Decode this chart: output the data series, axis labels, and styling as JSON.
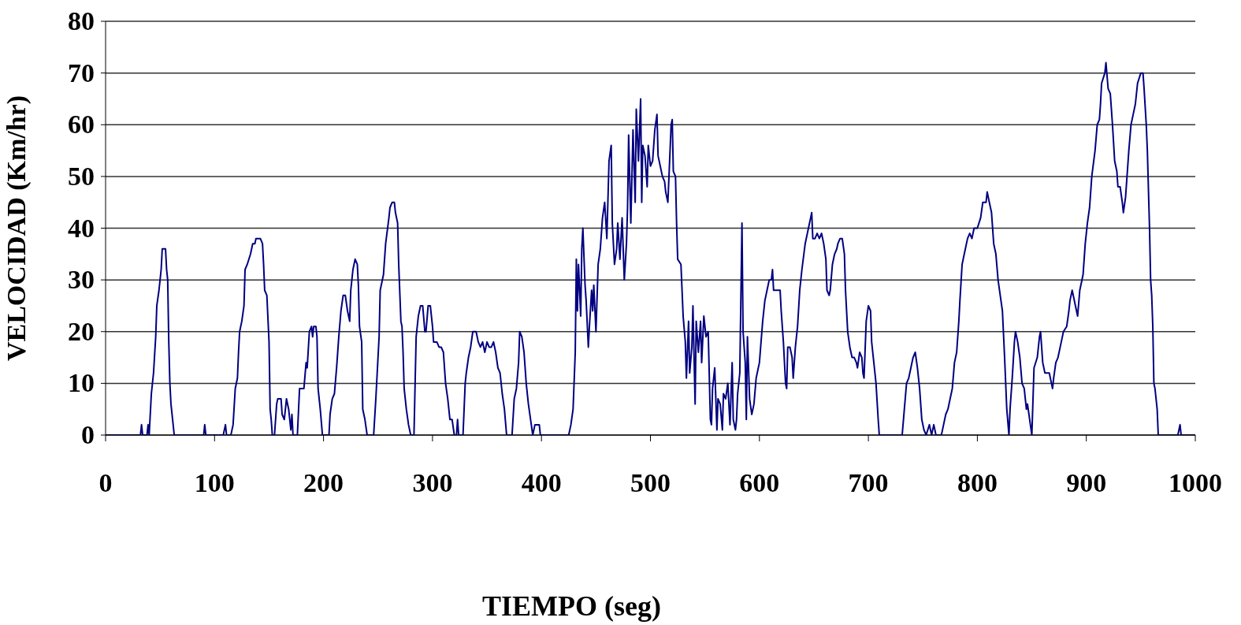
{
  "chart_data": {
    "type": "line",
    "xlabel": "TIEMPO (seg)",
    "ylabel": "VELOCIDAD (Km/hr)",
    "xlim": [
      0,
      1000
    ],
    "xticks": [
      0,
      100,
      200,
      300,
      400,
      500,
      600,
      700,
      800,
      900,
      1000
    ],
    "ylim": [
      0,
      80
    ],
    "yticks": [
      0,
      10,
      20,
      30,
      40,
      50,
      60,
      70,
      80
    ],
    "grid": "y",
    "series": [
      {
        "color": "#000080",
        "x": [
          0,
          32,
          33,
          34,
          38,
          39,
          40,
          42,
          44,
          46,
          47,
          49,
          51,
          52,
          55,
          56,
          57,
          58,
          59,
          60,
          62,
          63,
          65,
          90,
          91,
          92,
          108,
          110,
          111,
          115,
          117,
          119,
          121,
          122,
          123,
          125,
          127,
          128,
          130,
          133,
          135,
          137,
          138,
          142,
          144,
          145,
          146,
          148,
          150,
          151,
          152,
          153,
          155,
          157,
          158,
          161,
          162,
          164,
          166,
          168,
          170,
          171,
          172,
          176,
          178,
          182,
          184,
          185,
          187,
          189,
          190,
          191,
          193,
          194,
          195,
          197,
          199,
          205,
          206,
          208,
          210,
          212,
          214,
          216,
          218,
          220,
          222,
          224,
          225,
          227,
          229,
          231,
          232,
          233,
          235,
          236,
          238,
          240,
          246,
          248,
          249,
          251,
          252,
          255,
          257,
          260,
          261,
          263,
          265,
          266,
          268,
          269,
          271,
          272,
          273,
          274,
          276,
          278,
          280,
          283,
          285,
          287,
          289,
          291,
          293,
          294,
          296,
          298,
          300,
          301,
          304,
          306,
          308,
          310,
          312,
          314,
          316,
          318,
          320,
          322,
          323,
          324,
          328,
          330,
          331,
          333,
          335,
          337,
          340,
          342,
          344,
          346,
          348,
          350,
          352,
          354,
          356,
          358,
          360,
          362,
          364,
          366,
          368,
          373,
          375,
          377,
          379,
          380,
          382,
          384,
          386,
          388,
          390,
          392,
          394,
          398,
          399,
          425,
          427,
          429,
          431,
          432,
          433,
          434,
          436,
          437,
          438,
          440,
          441,
          443,
          444,
          446,
          447,
          448,
          450,
          452,
          454,
          456,
          458,
          460,
          462,
          464,
          465,
          467,
          469,
          470,
          472,
          474,
          476,
          478,
          479,
          480,
          482,
          484,
          486,
          487,
          489,
          491,
          492,
          493,
          495,
          497,
          498,
          500,
          502,
          504,
          506,
          507,
          509,
          511,
          513,
          514,
          516,
          517,
          519,
          520,
          521,
          523,
          524,
          525,
          528,
          530,
          532,
          533,
          535,
          536,
          538,
          539,
          541,
          542,
          544,
          546,
          547,
          549,
          551,
          553,
          555,
          556,
          557,
          559,
          561,
          562,
          564,
          566,
          567,
          569,
          571,
          573,
          575,
          576,
          578,
          579,
          580,
          582,
          584,
          585,
          587,
          588,
          589,
          591,
          593,
          595,
          597,
          600,
          603,
          605,
          607,
          609,
          611,
          612,
          613,
          616,
          619,
          620,
          622,
          624,
          625,
          626,
          628,
          630,
          631,
          633,
          635,
          637,
          639,
          642,
          645,
          647,
          648,
          649,
          651,
          653,
          655,
          657,
          659,
          661,
          662,
          664,
          665,
          667,
          669,
          671,
          672,
          674,
          676,
          678,
          679,
          681,
          683,
          685,
          687,
          689,
          690,
          692,
          694,
          695,
          696,
          698,
          700,
          702,
          703,
          705,
          707,
          709,
          710,
          731,
          733,
          735,
          737,
          739,
          741,
          743,
          745,
          747,
          749,
          751,
          753,
          756,
          758,
          760,
          762,
          767,
          769,
          771,
          773,
          775,
          777,
          779,
          781,
          783,
          784,
          786,
          788,
          791,
          793,
          795,
          797,
          800,
          803,
          805,
          808,
          809,
          811,
          813,
          815,
          817,
          819,
          821,
          823,
          825,
          827,
          829,
          830,
          832,
          834,
          835,
          837,
          839,
          841,
          843,
          844,
          845,
          846,
          848,
          850,
          852,
          855,
          857,
          858,
          860,
          862,
          866,
          868,
          869,
          870,
          872,
          874,
          877,
          879,
          882,
          884,
          885,
          887,
          888,
          890,
          892,
          894,
          897,
          899,
          901,
          903,
          905,
          908,
          910,
          912,
          913,
          914,
          917,
          918,
          920,
          922,
          924,
          926,
          928,
          929,
          931,
          933,
          934,
          936,
          938,
          939,
          941,
          943,
          945,
          947,
          950,
          952,
          953,
          955,
          956,
          958,
          959,
          960,
          961,
          962,
          963,
          965,
          966,
          984,
          985,
          986,
          987,
          1000
        ],
        "values": [
          0,
          0,
          2,
          0,
          0,
          2,
          0,
          8,
          12,
          19,
          25,
          28,
          32,
          36,
          36,
          32,
          30,
          18,
          10,
          6,
          2,
          0,
          0,
          0,
          2,
          0,
          0,
          2,
          0,
          0,
          2,
          9,
          11,
          16,
          20,
          22,
          25,
          32,
          33,
          35,
          37,
          37,
          38,
          38,
          37,
          33,
          28,
          27,
          18,
          5,
          3,
          0,
          0,
          6,
          7,
          7,
          4,
          3,
          7,
          5,
          1,
          4,
          0,
          0,
          9,
          9,
          14,
          13,
          20,
          21,
          19,
          21,
          21,
          19,
          9,
          5,
          0,
          0,
          4,
          7,
          8,
          13,
          19,
          24,
          27,
          27,
          24,
          22,
          28,
          32,
          34,
          33,
          29,
          21,
          18,
          5,
          3,
          0,
          0,
          7,
          11,
          19,
          28,
          31,
          37,
          42,
          44,
          45,
          45,
          43,
          41,
          33,
          22,
          21,
          16,
          9,
          5,
          2,
          0,
          0,
          19,
          23,
          25,
          25,
          20,
          20,
          25,
          25,
          21,
          18,
          18,
          17,
          17,
          16,
          10,
          7,
          3,
          3,
          0,
          0,
          3,
          0,
          0,
          10,
          12,
          15,
          17,
          20,
          20,
          18,
          17,
          18,
          16,
          18,
          17,
          17,
          18,
          16,
          13,
          12,
          8,
          5,
          0,
          0,
          7,
          9,
          14,
          20,
          19,
          16,
          10,
          6,
          3,
          0,
          2,
          2,
          0,
          0,
          2,
          5,
          16,
          34,
          24,
          33,
          23,
          36,
          40,
          29,
          26,
          17,
          21,
          28,
          24,
          29,
          20,
          33,
          36,
          42,
          45,
          38,
          53,
          56,
          41,
          33,
          36,
          41,
          34,
          42,
          30,
          37,
          44,
          58,
          41,
          59,
          45,
          63,
          53,
          65,
          45,
          56,
          54,
          48,
          56,
          52,
          53,
          59,
          62,
          54,
          52,
          50,
          49,
          47,
          45,
          50,
          60,
          61,
          51,
          50,
          41,
          34,
          33,
          23,
          18,
          11,
          22,
          12,
          17,
          25,
          6,
          22,
          16,
          22,
          14,
          23,
          19,
          20,
          3,
          2,
          9,
          13,
          1,
          7,
          6,
          1,
          8,
          7,
          10,
          2,
          14,
          3,
          1,
          3,
          8,
          12,
          41,
          20,
          14,
          3,
          19,
          7,
          4,
          6,
          11,
          14,
          22,
          26,
          28,
          30,
          30,
          32,
          28,
          28,
          28,
          24,
          18,
          10,
          9,
          17,
          17,
          15,
          11,
          17,
          21,
          28,
          32,
          37,
          40,
          42,
          43,
          38,
          38,
          39,
          38,
          39,
          37,
          34,
          28,
          27,
          28,
          33,
          35,
          36,
          37,
          38,
          38,
          35,
          28,
          20,
          17,
          15,
          15,
          14,
          13,
          16,
          15,
          12,
          11,
          22,
          25,
          24,
          18,
          14,
          10,
          3,
          0,
          0,
          5,
          10,
          11,
          13,
          15,
          16,
          13,
          9,
          3,
          1,
          0,
          2,
          0,
          2,
          0,
          0,
          2,
          4,
          5,
          7,
          9,
          14,
          16,
          22,
          26,
          33,
          35,
          38,
          39,
          38,
          40,
          40,
          42,
          45,
          45,
          47,
          45,
          43,
          37,
          35,
          30,
          27,
          24,
          15,
          5,
          0,
          5,
          11,
          18,
          20,
          18,
          15,
          10,
          9,
          7,
          5,
          6,
          3,
          0,
          13,
          15,
          19,
          20,
          14,
          12,
          12,
          10,
          9,
          11,
          14,
          15,
          18,
          20,
          21,
          24,
          26,
          28,
          27,
          25,
          23,
          28,
          31,
          37,
          41,
          44,
          50,
          55,
          60,
          61,
          64,
          68,
          70,
          72,
          67,
          66,
          60,
          53,
          51,
          48,
          48,
          45,
          43,
          46,
          52,
          55,
          60,
          62,
          64,
          68,
          70,
          70,
          67,
          60,
          55,
          40,
          30,
          27,
          21,
          10,
          9,
          5,
          0,
          0,
          1,
          2,
          0,
          0
        ]
      }
    ]
  }
}
